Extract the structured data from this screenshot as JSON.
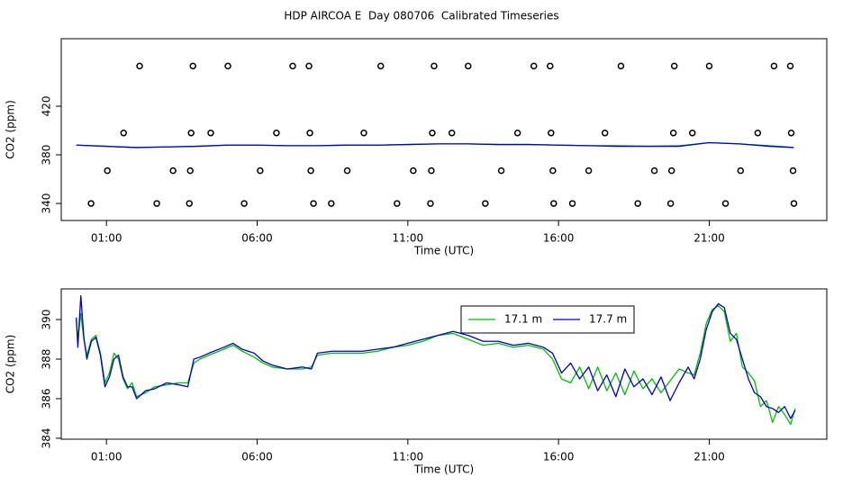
{
  "chart_data": [
    {
      "type": "line",
      "title": "HDP AIRCOA E  Day 080706  Calibrated Timeseries",
      "xlabel": "Time (UTC)",
      "ylabel": "CO2 (ppm)",
      "xlim": [
        -0.5,
        24.9
      ],
      "ylim": [
        326,
        475.5
      ],
      "xticks": [
        {
          "value": 1,
          "label": "01:00"
        },
        {
          "value": 6,
          "label": "06:00"
        },
        {
          "value": 11,
          "label": "11:00"
        },
        {
          "value": 16,
          "label": "16:00"
        },
        {
          "value": 21,
          "label": "21:00"
        }
      ],
      "yticks": [
        340,
        380,
        420
      ],
      "x": [
        0,
        1,
        2,
        3,
        4,
        5,
        6,
        7,
        8,
        9,
        10,
        11,
        12,
        13,
        14,
        15,
        16,
        17,
        18,
        19,
        20,
        21,
        22,
        23,
        23.8
      ],
      "series": [
        {
          "color": "#00c000",
          "values": [
            388,
            387,
            386,
            386.5,
            387,
            388,
            388,
            387.5,
            387.5,
            388,
            388,
            388.5,
            389,
            389,
            388.5,
            388.5,
            388,
            387.5,
            387.5,
            387,
            387.5,
            390,
            389,
            387.5,
            386
          ]
        },
        {
          "color": "#0000cc",
          "values": [
            388,
            387,
            386,
            386.5,
            387,
            388,
            388,
            387.5,
            387.5,
            388,
            388,
            388.5,
            389,
            389,
            388.5,
            388.5,
            388,
            387.5,
            387,
            387,
            387,
            390,
            389,
            387,
            386
          ]
        },
        {
          "color": "#000000",
          "marker": "circle",
          "x": [
            2.1,
            3.87,
            5.03,
            7.18,
            7.72,
            10.1,
            11.87,
            13.0,
            15.18,
            15.72,
            18.07,
            19.84,
            21.0,
            23.15,
            23.69,
            1.57,
            3.81,
            4.46,
            6.64,
            7.75,
            9.54,
            11.81,
            12.46,
            14.64,
            15.75,
            17.54,
            19.81,
            20.44,
            22.61,
            23.72,
            1.03,
            3.21,
            3.78,
            6.1,
            7.78,
            8.99,
            11.18,
            11.78,
            14.1,
            15.81,
            17.0,
            19.18,
            19.75,
            22.04,
            23.78,
            0.49,
            2.67,
            3.75,
            5.57,
            7.87,
            8.46,
            10.64,
            11.75,
            13.57,
            15.84,
            16.46,
            18.63,
            19.72,
            21.54,
            23.81
          ],
          "values": [
            453,
            453,
            453,
            453,
            453,
            453,
            453,
            453,
            453,
            453,
            453,
            453,
            453,
            453,
            453,
            398,
            398,
            398,
            398,
            398,
            398,
            398,
            398,
            398,
            398,
            398,
            398,
            398,
            398,
            398,
            367,
            367,
            367,
            367,
            367,
            367,
            367,
            367,
            367,
            367,
            367,
            367,
            367,
            367,
            367,
            340,
            340,
            340,
            340,
            340,
            340,
            340,
            340,
            340,
            340,
            340,
            340,
            340,
            340,
            340
          ]
        }
      ]
    },
    {
      "type": "line",
      "xlabel": "Time (UTC)",
      "ylabel": "CO2 (ppm)",
      "xlim": [
        -0.5,
        24.9
      ],
      "ylim": [
        383.95,
        391.55
      ],
      "xticks": [
        {
          "value": 1,
          "label": "01:00"
        },
        {
          "value": 6,
          "label": "06:00"
        },
        {
          "value": 11,
          "label": "11:00"
        },
        {
          "value": 16,
          "label": "16:00"
        },
        {
          "value": 21,
          "label": "21:00"
        }
      ],
      "yticks": [
        384,
        386,
        388,
        390
      ],
      "legend": "top-right",
      "x": [
        0.0,
        0.05,
        0.15,
        0.25,
        0.35,
        0.5,
        0.65,
        0.8,
        0.95,
        1.1,
        1.25,
        1.4,
        1.55,
        1.7,
        1.85,
        2.0,
        2.3,
        2.6,
        3.0,
        3.4,
        3.7,
        3.9,
        4.1,
        4.4,
        4.9,
        5.2,
        5.5,
        5.9,
        6.2,
        6.5,
        7.0,
        7.5,
        7.8,
        8.0,
        8.5,
        9.0,
        9.5,
        10.0,
        10.5,
        11.0,
        11.5,
        12.0,
        12.5,
        13.0,
        13.5,
        14.0,
        14.5,
        15.0,
        15.5,
        15.8,
        16.1,
        16.4,
        16.7,
        17.0,
        17.3,
        17.6,
        17.9,
        18.2,
        18.5,
        18.8,
        19.1,
        19.4,
        19.7,
        20.0,
        20.3,
        20.5,
        20.7,
        20.9,
        21.1,
        21.3,
        21.5,
        21.7,
        21.9,
        22.1,
        22.3,
        22.5,
        22.7,
        22.9,
        23.1,
        23.3,
        23.5,
        23.7,
        23.85
      ],
      "series": [
        {
          "name": "17.1 m",
          "color": "#00c000",
          "values": [
            390.0,
            389.0,
            390.3,
            389.0,
            388.2,
            389.0,
            389.2,
            388.3,
            386.8,
            387.3,
            388.3,
            388.0,
            387.0,
            386.5,
            386.8,
            386.1,
            386.3,
            386.6,
            386.7,
            386.8,
            386.8,
            387.8,
            388.0,
            388.2,
            388.5,
            388.7,
            388.4,
            388.1,
            387.8,
            387.6,
            387.5,
            387.5,
            387.6,
            388.2,
            388.3,
            388.3,
            388.3,
            388.4,
            388.6,
            388.7,
            388.9,
            389.2,
            389.3,
            389.0,
            388.7,
            388.8,
            388.6,
            388.7,
            388.5,
            388.0,
            387.0,
            386.8,
            387.6,
            386.5,
            387.6,
            386.4,
            387.3,
            386.2,
            387.4,
            386.5,
            387.0,
            386.3,
            386.9,
            387.5,
            387.3,
            387.2,
            388.3,
            389.8,
            390.5,
            390.7,
            390.4,
            388.9,
            389.3,
            387.6,
            387.3,
            386.9,
            385.6,
            385.9,
            384.8,
            385.6,
            385.2,
            384.7,
            385.5
          ]
        },
        {
          "name": "17.7 m",
          "color": "#0000cc",
          "values": [
            390.1,
            388.6,
            391.2,
            389.1,
            388.0,
            388.9,
            389.1,
            388.2,
            386.6,
            387.1,
            388.0,
            388.2,
            387.1,
            386.6,
            386.6,
            386.0,
            386.4,
            386.5,
            386.8,
            386.7,
            386.6,
            388.0,
            388.1,
            388.3,
            388.6,
            388.8,
            388.5,
            388.3,
            387.9,
            387.7,
            387.5,
            387.6,
            387.5,
            388.3,
            388.4,
            388.4,
            388.4,
            388.5,
            388.6,
            388.8,
            389.0,
            389.2,
            389.4,
            389.2,
            388.9,
            388.9,
            388.7,
            388.8,
            388.6,
            388.3,
            387.3,
            387.8,
            387.0,
            387.6,
            386.4,
            387.2,
            386.1,
            387.5,
            386.6,
            387.0,
            386.2,
            387.1,
            385.9,
            386.8,
            387.6,
            387.0,
            388.0,
            389.5,
            390.4,
            390.8,
            390.6,
            389.3,
            389.0,
            388.0,
            387.0,
            386.3,
            386.1,
            385.6,
            385.5,
            385.3,
            385.6,
            385.0,
            385.4
          ]
        }
      ]
    }
  ]
}
